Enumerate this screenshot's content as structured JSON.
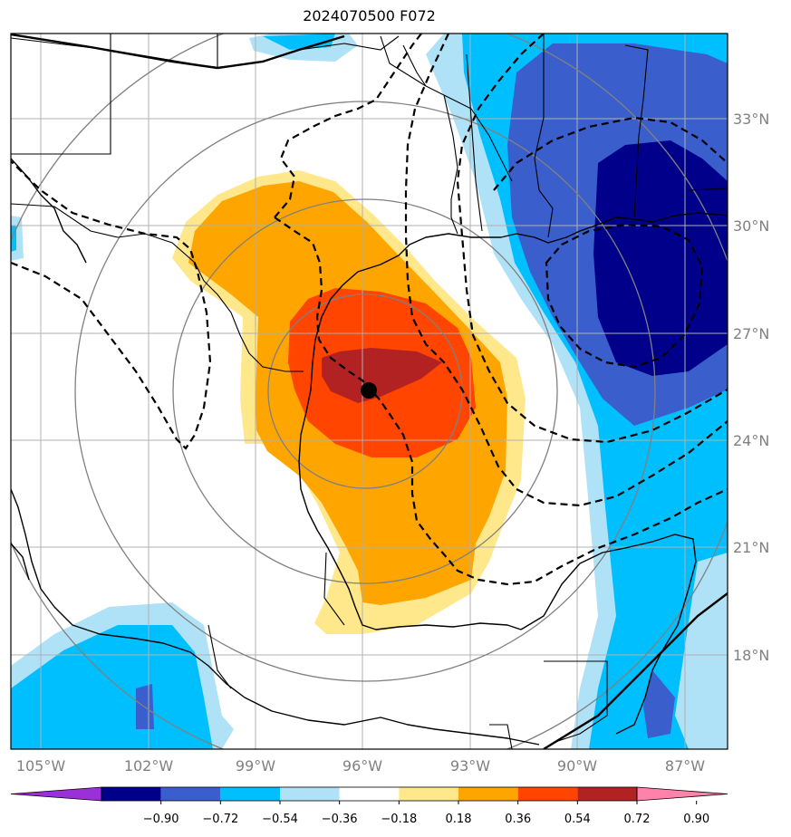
{
  "title": "2024070500 F072",
  "lon_labels": [
    "105°W",
    "102°W",
    "99°W",
    "96°W",
    "93°W",
    "90°W",
    "87°W"
  ],
  "lat_labels": [
    "33°N",
    "30°N",
    "27°N",
    "24°N",
    "21°N",
    "18°N"
  ],
  "colorbar": {
    "ticks": [
      "−0.90",
      "−0.72",
      "−0.54",
      "−0.36",
      "−0.18",
      "0.18",
      "0.36",
      "0.54",
      "0.72",
      "0.90"
    ],
    "colors": [
      "#9b30d9",
      "#00008b",
      "#3a5fcd",
      "#00bfff",
      "#b0e2f7",
      "#ffffff",
      "#ffe88c",
      "#ffa500",
      "#ff4500",
      "#b22222",
      "#ff82ab"
    ]
  },
  "colors": {
    "land_line": "#000000",
    "grid": "#b0b0b0",
    "range_ring": "#808080",
    "center_marker": "#000000"
  }
}
